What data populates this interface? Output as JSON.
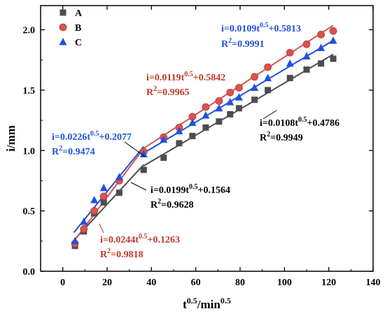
{
  "chart_data": {
    "type": "scatter",
    "xlabel": "t0.5/min0.5",
    "xlabel_parts": {
      "base": "t",
      "sup1": "0.5",
      "mid": "/min",
      "sup2": "0.5"
    },
    "ylabel": "i/mm",
    "xlim": [
      -10,
      140
    ],
    "ylim": [
      0.0,
      2.2
    ],
    "xticks": [
      "0",
      "20",
      "40",
      "60",
      "80",
      "100",
      "120",
      "140"
    ],
    "yticks": [
      "0.0",
      "0.5",
      "1.0",
      "1.5",
      "2.0"
    ],
    "grid": false,
    "legend_position": "top-left",
    "series": [
      {
        "name": "A",
        "marker": "square",
        "color": "#4d4d4d",
        "points": [
          [
            5.5,
            0.21
          ],
          [
            9.5,
            0.33
          ],
          [
            14.2,
            0.48
          ],
          [
            18.5,
            0.57
          ],
          [
            25.5,
            0.65
          ],
          [
            36.5,
            0.84
          ],
          [
            45.5,
            0.94
          ],
          [
            52.5,
            1.06
          ],
          [
            58.5,
            1.12
          ],
          [
            64.5,
            1.19
          ],
          [
            70.5,
            1.24
          ],
          [
            75.5,
            1.3
          ],
          [
            79.5,
            1.35
          ],
          [
            86.5,
            1.42
          ],
          [
            92.5,
            1.5
          ],
          [
            102.5,
            1.6
          ],
          [
            110.0,
            1.67
          ],
          [
            116.5,
            1.72
          ],
          [
            122.0,
            1.76
          ]
        ]
      },
      {
        "name": "B",
        "marker": "circle",
        "color": "#d9534f",
        "points": [
          [
            5.5,
            0.23
          ],
          [
            9.5,
            0.35
          ],
          [
            14.2,
            0.5
          ],
          [
            18.5,
            0.62
          ],
          [
            25.5,
            0.75
          ],
          [
            36.5,
            0.99
          ],
          [
            45.5,
            1.11
          ],
          [
            52.5,
            1.19
          ],
          [
            58.5,
            1.28
          ],
          [
            64.5,
            1.36
          ],
          [
            70.5,
            1.41
          ],
          [
            75.5,
            1.48
          ],
          [
            79.5,
            1.52
          ],
          [
            86.5,
            1.61
          ],
          [
            92.5,
            1.69
          ],
          [
            102.5,
            1.81
          ],
          [
            110.0,
            1.88
          ],
          [
            116.5,
            1.96
          ],
          [
            122.0,
            1.99
          ]
        ]
      },
      {
        "name": "C",
        "marker": "triangle",
        "color": "#1f51e0",
        "points": [
          [
            5.5,
            0.25
          ],
          [
            9.5,
            0.41
          ],
          [
            14.2,
            0.59
          ],
          [
            18.5,
            0.69
          ],
          [
            25.5,
            0.78
          ],
          [
            36.5,
            0.97
          ],
          [
            45.5,
            1.09
          ],
          [
            52.5,
            1.16
          ],
          [
            58.5,
            1.23
          ],
          [
            64.5,
            1.29
          ],
          [
            70.5,
            1.35
          ],
          [
            75.5,
            1.4
          ],
          [
            79.5,
            1.44
          ],
          [
            86.5,
            1.52
          ],
          [
            92.5,
            1.6
          ],
          [
            102.5,
            1.72
          ],
          [
            110.0,
            1.78
          ],
          [
            116.5,
            1.85
          ],
          [
            122.0,
            1.91
          ]
        ]
      }
    ],
    "fit_lines": [
      {
        "series": "A",
        "x": [
          5,
          36.5
        ],
        "y": [
          0.2559,
          0.8828
        ]
      },
      {
        "series": "A",
        "x": [
          36.5,
          122
        ],
        "y": [
          0.8728,
          1.7962
        ]
      },
      {
        "series": "B",
        "x": [
          5,
          36.5
        ],
        "y": [
          0.2483,
          1.0169
        ]
      },
      {
        "series": "B",
        "x": [
          36.5,
          122
        ],
        "y": [
          1.0186,
          2.036
        ]
      },
      {
        "series": "C",
        "x": [
          5,
          36.5
        ],
        "y": [
          0.3207,
          1.0326
        ]
      },
      {
        "series": "C",
        "x": [
          36.5,
          122
        ],
        "y": [
          0.9792,
          1.9111
        ]
      }
    ],
    "annotations": [
      {
        "id": "c2",
        "color": "#1f51e0",
        "line1": {
          "pre": "i=0.0109t",
          "sup": "0.5",
          "post": "+0.5813"
        },
        "line2": {
          "pre": "R",
          "sup": "2",
          "post": "=0.9991"
        }
      },
      {
        "id": "b2",
        "color": "#c0392b",
        "line1": {
          "pre": "i=0.0119t",
          "sup": "0.5",
          "post": "+0.5842"
        },
        "line2": {
          "pre": "R",
          "sup": "2",
          "post": "=0.9965"
        }
      },
      {
        "id": "a2",
        "color": "#000000",
        "line1": {
          "pre": "i=0.0108t",
          "sup": "0.5",
          "post": "+0.4786"
        },
        "line2": {
          "pre": "R",
          "sup": "2",
          "post": "=0.9949"
        }
      },
      {
        "id": "c1",
        "color": "#1f51e0",
        "line1": {
          "pre": "i=0.0226t",
          "sup": "0.5",
          "post": "+0.2077"
        },
        "line2": {
          "pre": "R",
          "sup": "2",
          "post": "=0.9474"
        }
      },
      {
        "id": "a1",
        "color": "#000000",
        "line1": {
          "pre": "i=0.0199t",
          "sup": "0.5",
          "post": "+0.1564"
        },
        "line2": {
          "pre": "R",
          "sup": "2",
          "post": "=0.9628"
        }
      },
      {
        "id": "b1",
        "color": "#c0392b",
        "line1": {
          "pre": "i=0.0244t",
          "sup": "0.5",
          "post": "+0.1263"
        },
        "line2": {
          "pre": "R",
          "sup": "2",
          "post": "=0.9818"
        }
      }
    ]
  }
}
